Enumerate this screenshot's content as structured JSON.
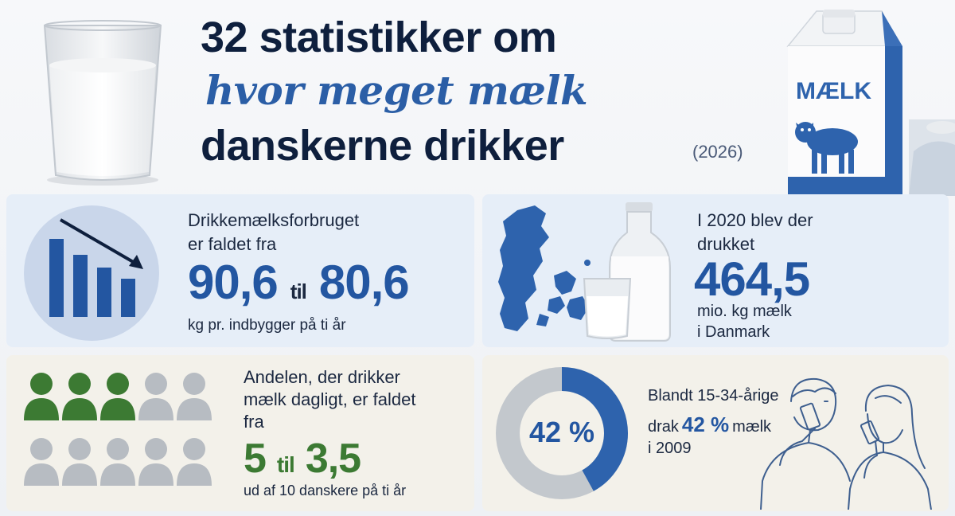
{
  "header": {
    "line1": "32 statistikker om",
    "line2": "hvor meget mælk",
    "line3": "danskerne drikker",
    "year": "(2026)"
  },
  "carton": {
    "label": "MÆLK"
  },
  "stat_consumption": {
    "label_line1": "Drikkemælksforbruget",
    "label_line2": "er faldet fra",
    "from": "90,6",
    "connector": "til",
    "to": "80,6",
    "unit": "kg pr. indbygger på ti år"
  },
  "stat_total": {
    "label_line1": "I 2020 blev der",
    "label_line2": "drukket",
    "value": "464,5",
    "unit_line1": "mio. kg mælk",
    "unit_line2": "i Danmark"
  },
  "stat_daily": {
    "label_line1": "Andelen, der drikker",
    "label_line2": "mælk dagligt, er faldet",
    "label_line3": "fra",
    "from": "5",
    "connector": "til",
    "to": "3,5",
    "unit": "ud af 10 danskere på ti år",
    "highlighted_people": 3,
    "total_people": 10
  },
  "stat_young": {
    "donut_label": "42 %",
    "donut_fraction": 0.42,
    "line1": "Blandt 15-34-årige",
    "line2_pre": "drak",
    "line2_pct": "42 %",
    "line2_post": "mælk",
    "line3": "i 2009"
  },
  "colors": {
    "navy": "#0e1f3d",
    "blue": "#2356a1",
    "green": "#3c7a33",
    "grey": "#b7bcc2",
    "panel_blue": "#e6eef8",
    "panel_cream": "#f3f1ea"
  }
}
